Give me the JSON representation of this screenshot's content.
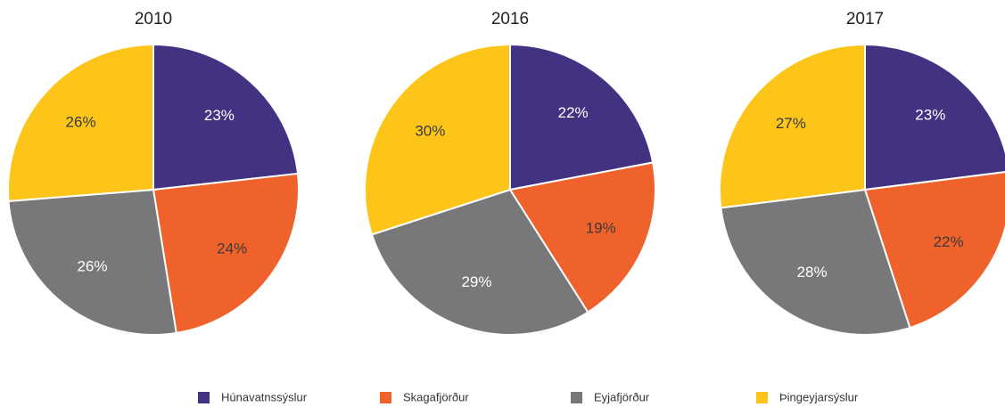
{
  "chart_data": [
    {
      "type": "pie",
      "title": "2010",
      "values": [
        23,
        24,
        26,
        26
      ],
      "value_labels": [
        "23%",
        "24%",
        "26%",
        "26%"
      ]
    },
    {
      "type": "pie",
      "title": "2016",
      "values": [
        22,
        19,
        29,
        30
      ],
      "value_labels": [
        "22%",
        "19%",
        "29%",
        "30%"
      ]
    },
    {
      "type": "pie",
      "title": "2017",
      "values": [
        23,
        22,
        28,
        27
      ],
      "value_labels": [
        "23%",
        "22%",
        "28%",
        "27%"
      ]
    }
  ],
  "legend": {
    "labels": [
      "Húnavatnssýslur",
      "Skagafjörður",
      "Eyjafjörður",
      "Þingeyjarsýslur"
    ],
    "colors": [
      "#433282",
      "#f0622c",
      "#78787b",
      "#fdc51a"
    ],
    "label_colors": [
      "#ffffff",
      "#3a3a3a",
      "#ffffff",
      "#3a3a3a"
    ]
  }
}
